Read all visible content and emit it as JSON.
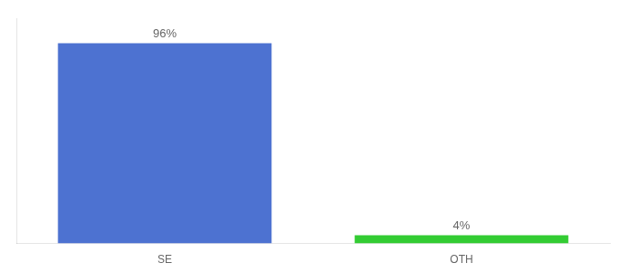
{
  "chart_data": {
    "type": "bar",
    "categories": [
      "SE",
      "OTH"
    ],
    "values": [
      96,
      4
    ],
    "value_labels": [
      "96%",
      "4%"
    ],
    "colors": [
      "#4d72d1",
      "#33cc33"
    ],
    "ylim": [
      0,
      108
    ],
    "data_labels": true,
    "tick_labels": "x",
    "grid": false
  }
}
